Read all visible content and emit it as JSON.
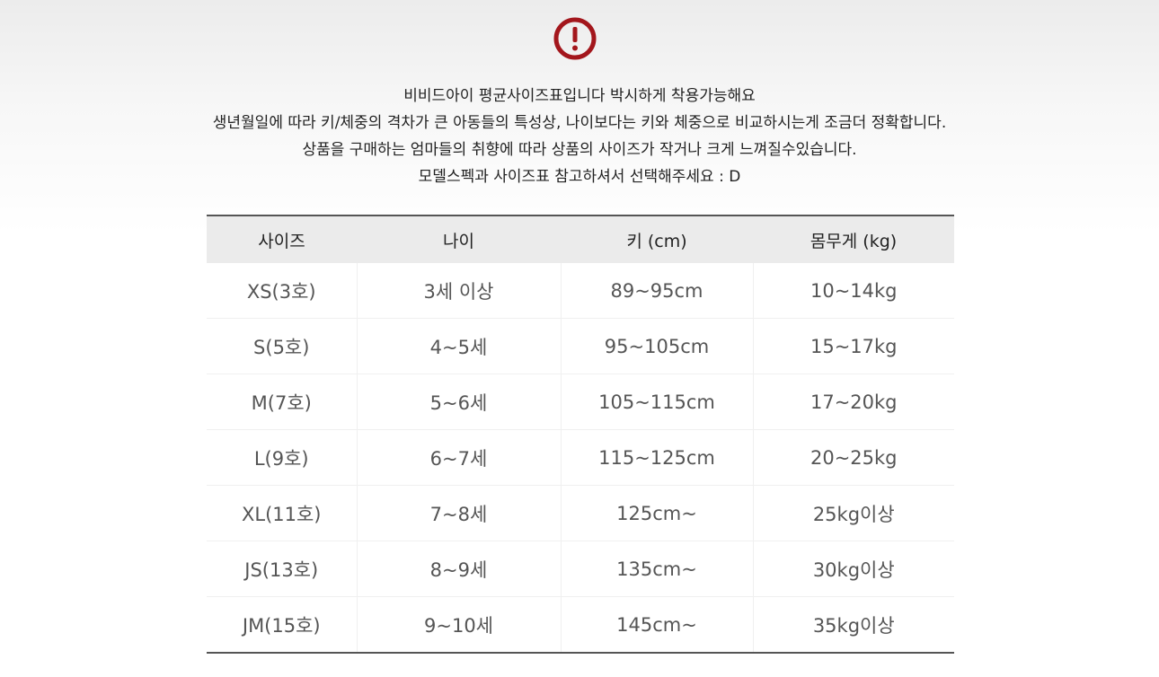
{
  "icon": "exclamation-circle-icon",
  "accent": "#a3161c",
  "notes": [
    "비비드아이 평균사이즈표입니다  박시하게 착용가능해요",
    "생년월일에 따라 키/체중의 격차가 큰 아동들의 특성상, 나이보다는 키와 체중으로 비교하시는게 조금더 정확합니다.",
    "상품을 구매하는 엄마들의 취향에 따라 상품의 사이즈가 작거나 크게 느껴질수있습니다.",
    "모델스펙과 사이즈표 참고하셔서 선택해주세요 : D"
  ],
  "table": {
    "headers": [
      "사이즈",
      "나이",
      "키 (cm)",
      "몸무게 (kg)"
    ],
    "rows": [
      [
        "XS(3호)",
        "3세 이상",
        "89~95cm",
        "10~14kg"
      ],
      [
        "S(5호)",
        "4~5세",
        "95~105cm",
        "15~17kg"
      ],
      [
        "M(7호)",
        "5~6세",
        "105~115cm",
        "17~20kg"
      ],
      [
        "L(9호)",
        "6~7세",
        "115~125cm",
        "20~25kg"
      ],
      [
        "XL(11호)",
        "7~8세",
        "125cm~",
        "25kg이상"
      ],
      [
        "JS(13호)",
        "8~9세",
        "135cm~",
        "30kg이상"
      ],
      [
        "JM(15호)",
        "9~10세",
        "145cm~",
        "35kg이상"
      ]
    ]
  }
}
